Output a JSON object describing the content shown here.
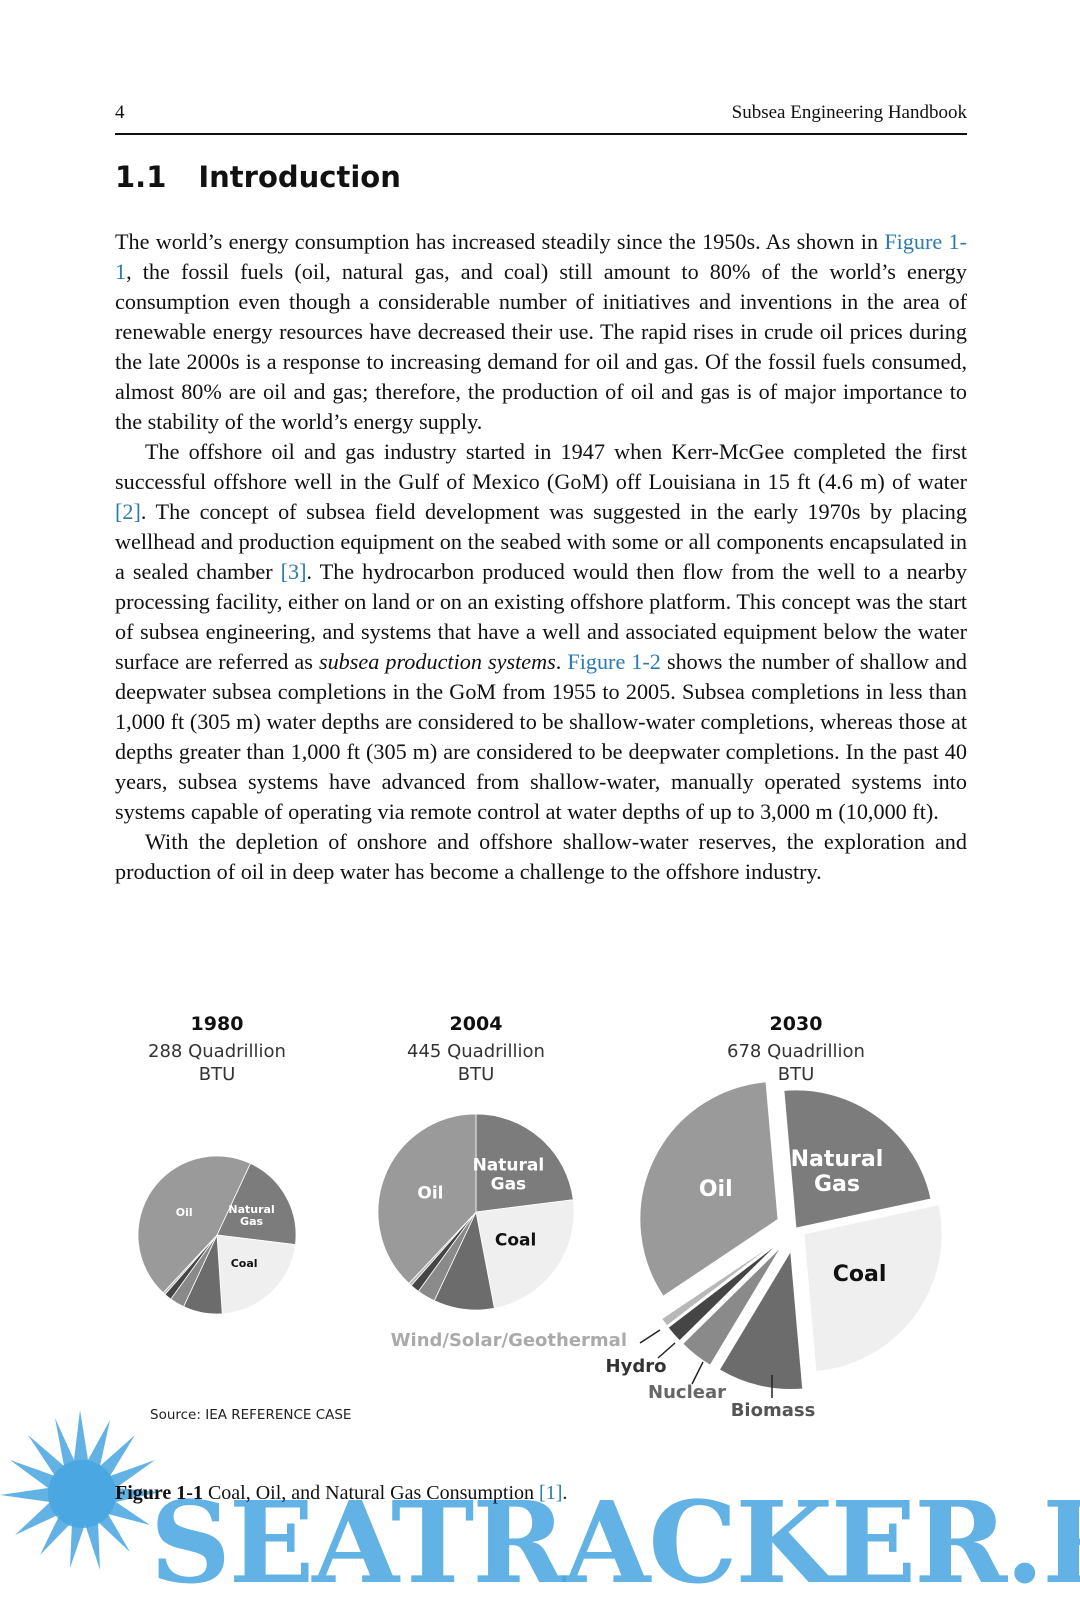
{
  "header": {
    "page_number": "4",
    "book_title": "Subsea Engineering Handbook"
  },
  "section": {
    "number": "1.1",
    "title": "Introduction"
  },
  "paragraphs": [
    [
      "The world’s energy consumption has increased steadily since the 1950s. As shown in ",
      "Figure 1-1",
      ", the fossil fuels (oil, natural gas, and coal) still amount to 80% of the world’s energy consumption even though a considerable number of initiatives and inventions in the area of renewable energy resources have decreased their use. The rapid rises in crude oil prices during the late 2000s is a response to increasing demand for oil and gas. Of the fossil fuels consumed, almost 80% are oil and gas; therefore, the production of oil and gas is of major importance to the stability of the world’s energy supply."
    ],
    [
      "The offshore oil and gas industry started in 1947 when Kerr-McGee completed the first successful offshore well in the Gulf of Mexico (GoM) off Louisiana in 15 ft (4.6 m) of water ",
      "[2]",
      ". The concept of subsea field development was suggested in the early 1970s by placing wellhead and production equipment on the seabed with some or all components encapsulated in a sealed chamber ",
      "[3]",
      ". The hydrocarbon produced would then flow from the well to a nearby processing facility, either on land or on an existing offshore platform. This concept was the start of subsea engineering, and systems that have a well and associated equipment below the water surface are referred as ",
      "subsea production systems",
      ". ",
      "Figure 1-2",
      " shows the number of shallow and deepwater subsea completions in the GoM from 1955 to 2005. Subsea completions in less than 1,000 ft (305 m) water depths are considered to be shallow-water completions, whereas those at depths greater than 1,000 ft (305 m) are considered to be deepwater completions. In the past 40 years, subsea systems have advanced from shallow-water, manually operated systems into systems capable of operating via remote control at water depths of up to 3,000 m (10,000 ft)."
    ],
    [
      "With the depletion of onshore and offshore shallow-water reserves, the exploration and production of oil in deep water has become a challenge to the offshore industry."
    ]
  ],
  "figure": {
    "categories": [
      "Natural Gas",
      "Coal",
      "Biomass",
      "Nuclear",
      "Hydro",
      "Wind/Solar/Geothermal",
      "Oil"
    ],
    "colors": [
      "#7c7c7c",
      "#efefef",
      "#6c6c6c",
      "#8a8a8a",
      "#454545",
      "#b8b8b8",
      "#9a9a9a"
    ],
    "charts": [
      {
        "type": "pie",
        "title": "1980",
        "subtitle": [
          "288 Quadrillion",
          "BTU"
        ],
        "values": [
          20,
          22,
          8,
          3,
          1.5,
          0.5,
          45
        ]
      },
      {
        "type": "pie",
        "title": "2004",
        "subtitle": [
          "445 Quadrillion",
          "BTU"
        ],
        "values": [
          23,
          24,
          10,
          3,
          1.5,
          0.5,
          38
        ]
      },
      {
        "type": "pie",
        "title": "2030",
        "subtitle": [
          "678 Quadrillion",
          "BTU"
        ],
        "values": [
          23,
          27,
          10,
          4,
          2,
          1,
          33
        ]
      }
    ],
    "source": "Source: IEA REFERENCE CASE",
    "caption": [
      "Figure 1-1",
      " Coal, Oil, and Natural Gas Consumption ",
      "[1]",
      "."
    ]
  },
  "watermark": "SEATRACKER.RU"
}
